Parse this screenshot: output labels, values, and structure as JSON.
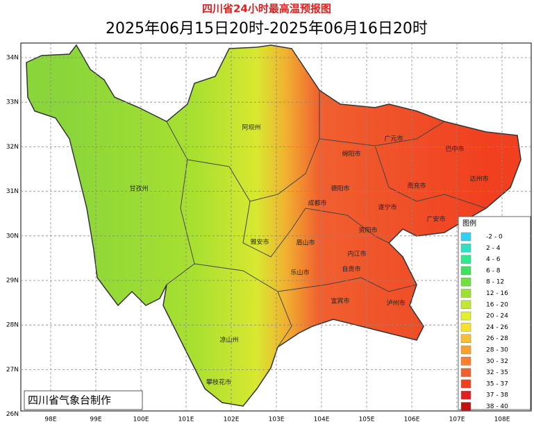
{
  "header": {
    "title": "四川省24小时最高温预报图",
    "subtitle": "2025年06月15日20时-2025年06月16日20时"
  },
  "axes": {
    "lat": [
      "34N",
      "33N",
      "32N",
      "31N",
      "30N",
      "29N",
      "28N",
      "27N",
      "26N"
    ],
    "lon": [
      "98E",
      "99E",
      "100E",
      "101E",
      "102E",
      "103E",
      "104E",
      "105E",
      "106E",
      "107E",
      "108E"
    ]
  },
  "regions": [
    "阿坝州",
    "甘孜州",
    "绵阳市",
    "广元市",
    "巴中市",
    "达州市",
    "南充市",
    "德阳市",
    "成都市",
    "遂宁市",
    "广安市",
    "资阳市",
    "雅安市",
    "眉山市",
    "内江市",
    "乐山市",
    "自贡市",
    "宜宾市",
    "泸州市",
    "凉山州",
    "攀枝花市"
  ],
  "legend": {
    "title": "图例",
    "items": [
      {
        "label": "-2 - 0",
        "color": "#30d0f0"
      },
      {
        "label": "2 - 4",
        "color": "#30e0c0"
      },
      {
        "label": "4 - 6",
        "color": "#30e890"
      },
      {
        "label": "6 - 8",
        "color": "#40e060"
      },
      {
        "label": "8 - 12",
        "color": "#70e040"
      },
      {
        "label": "12 - 16",
        "color": "#a0e030"
      },
      {
        "label": "16 - 20",
        "color": "#c0e830"
      },
      {
        "label": "20 - 24",
        "color": "#e0f030"
      },
      {
        "label": "24 - 26",
        "color": "#f8e030"
      },
      {
        "label": "26 - 28",
        "color": "#f8c030"
      },
      {
        "label": "28 - 30",
        "color": "#f8a030"
      },
      {
        "label": "30 - 32",
        "color": "#f88030"
      },
      {
        "label": "32 - 35",
        "color": "#f06030"
      },
      {
        "label": "35 - 37",
        "color": "#f04020"
      },
      {
        "label": "37 - 38",
        "color": "#e02020"
      },
      {
        "label": "38 - 40",
        "color": "#c01010"
      }
    ]
  },
  "credit": "四川省气象台制作"
}
